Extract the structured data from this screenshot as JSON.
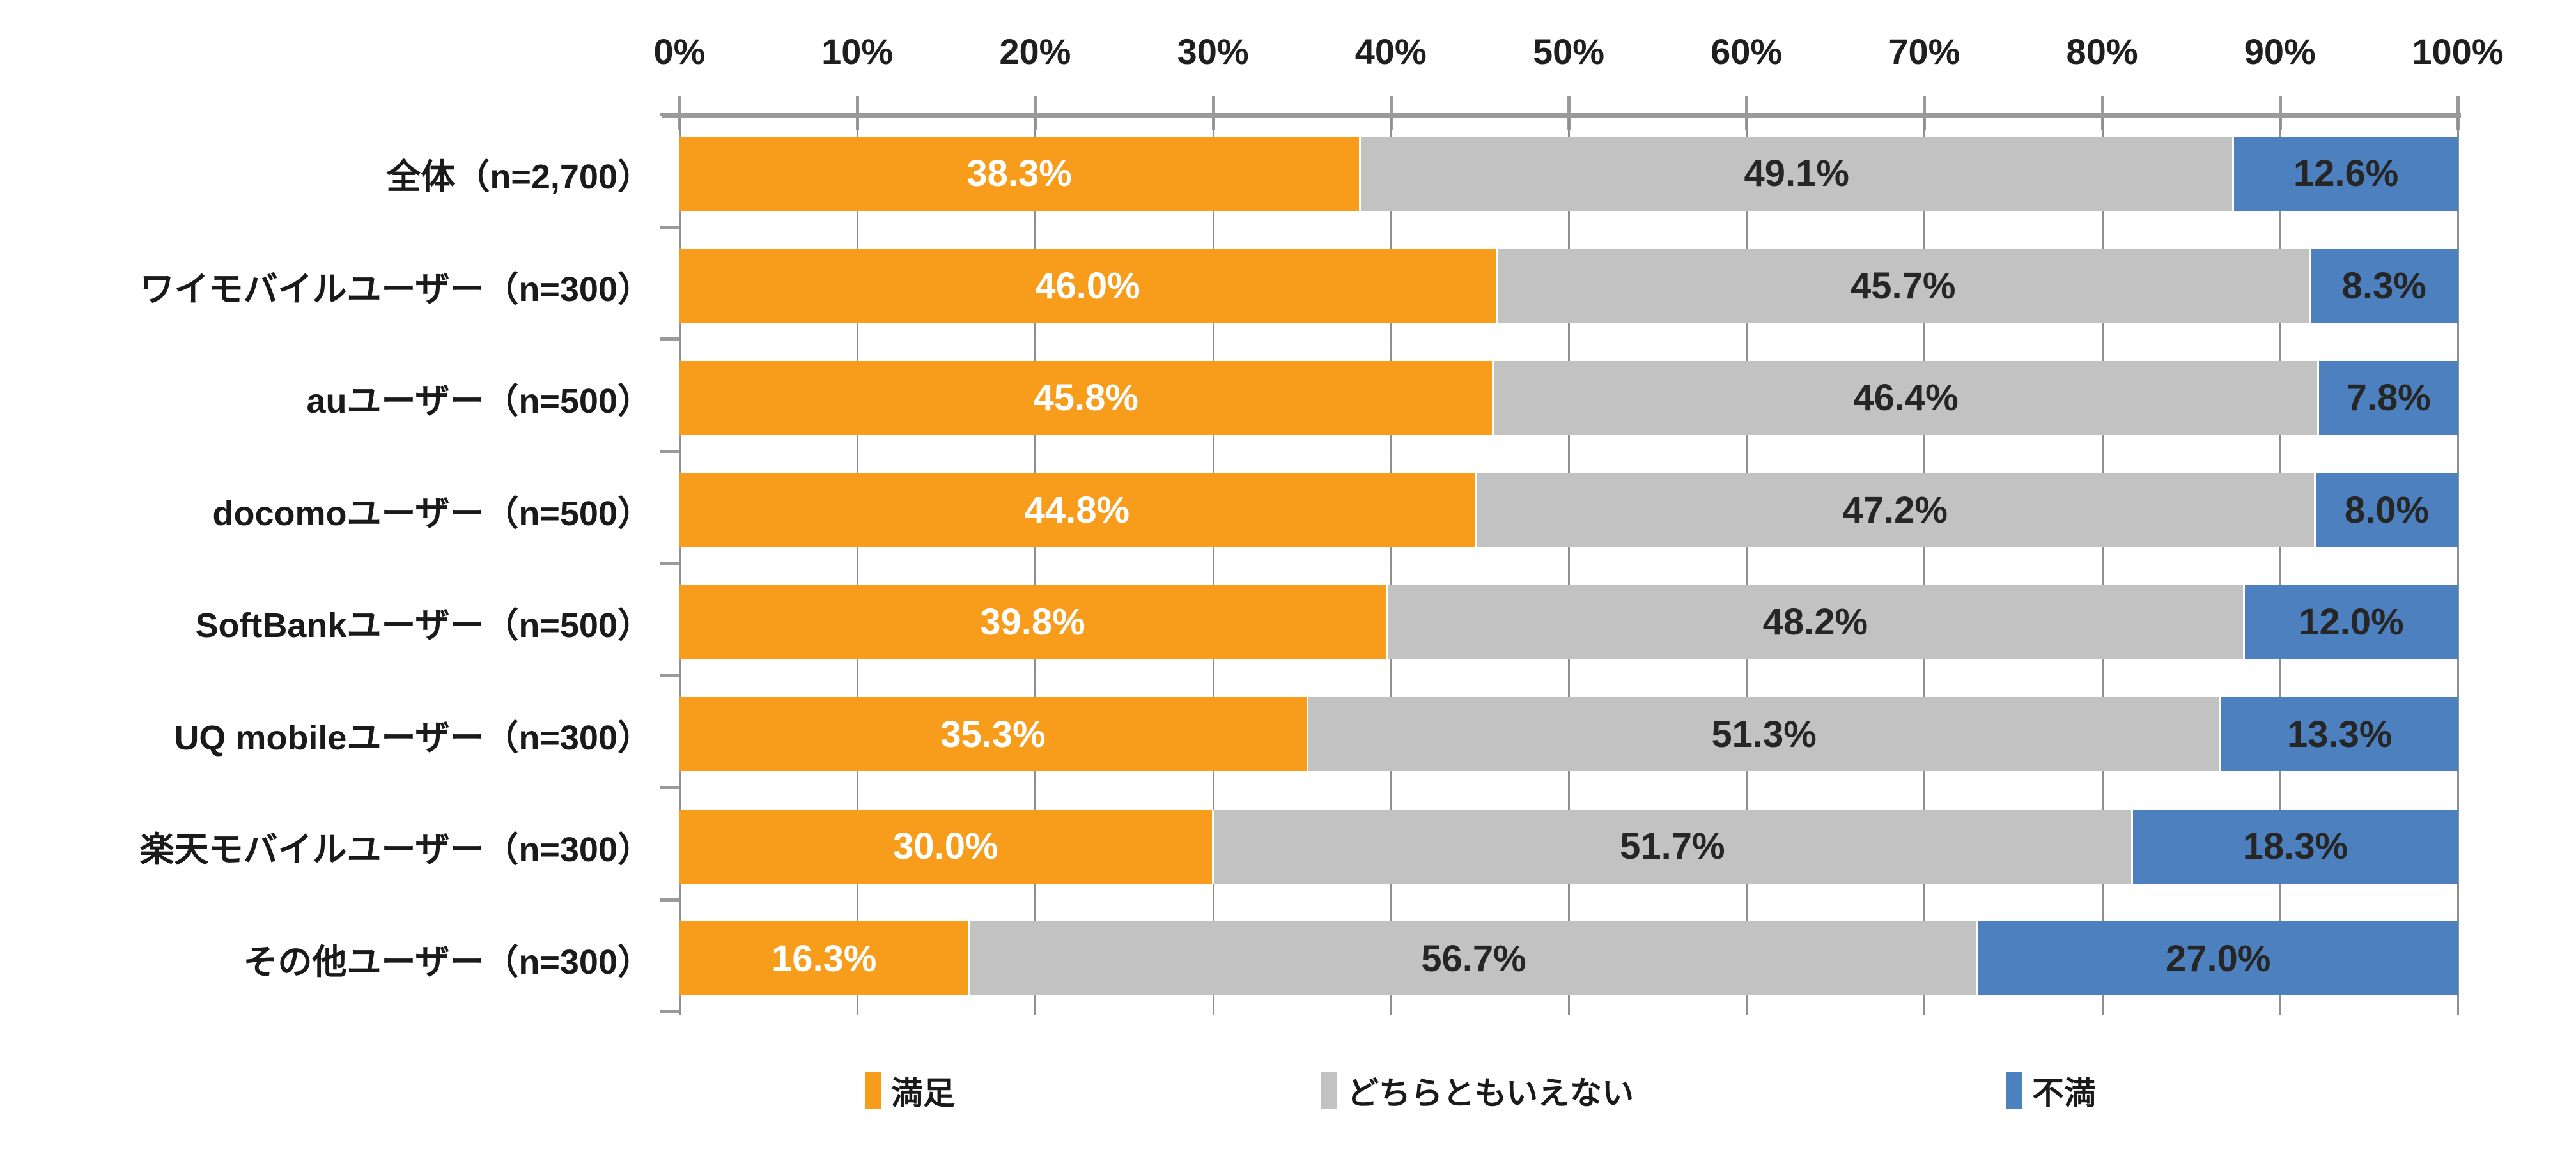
{
  "chart_data": {
    "type": "bar",
    "subtype": "horizontal-stacked-100",
    "title": "",
    "x_axis": {
      "position": "top",
      "min": 0,
      "max": 100,
      "tick_labels": [
        "0%",
        "10%",
        "20%",
        "30%",
        "40%",
        "50%",
        "60%",
        "70%",
        "80%",
        "90%",
        "100%"
      ]
    },
    "grid": true,
    "legend_position": "bottom",
    "value_suffix": "%",
    "value_decimals": 1,
    "categories": [
      "全体（n=2,700）",
      "ワイモバイルユーザー（n=300）",
      "auユーザー（n=500）",
      "docomoユーザー（n=500）",
      "SoftBankユーザー（n=500）",
      "UQ mobileユーザー（n=300）",
      "楽天モバイルユーザー（n=300）",
      "その他ユーザー（n=300）"
    ],
    "series": [
      {
        "key": "satisfied",
        "name": "満足",
        "color": "#F79C1B",
        "label_color": "#FFFFFF",
        "values": [
          38.3,
          46.0,
          45.8,
          44.8,
          39.8,
          35.3,
          30.0,
          16.3
        ]
      },
      {
        "key": "neutral",
        "name": "どちらともいえない",
        "color": "#C2C2C2",
        "label_color": "#262626",
        "values": [
          49.1,
          45.7,
          46.4,
          47.2,
          48.2,
          51.3,
          51.7,
          56.7
        ]
      },
      {
        "key": "dissatisfied",
        "name": "不満",
        "color": "#4C80BE",
        "label_color": "#262626",
        "values": [
          12.6,
          8.3,
          7.8,
          8.0,
          12.0,
          13.3,
          18.3,
          27.0
        ]
      }
    ],
    "colors": {
      "axis": "#9A9A9A",
      "gridline": "#8F8F8F",
      "axis_text": "#1F1F1F",
      "background": "#FFFFFF"
    }
  }
}
